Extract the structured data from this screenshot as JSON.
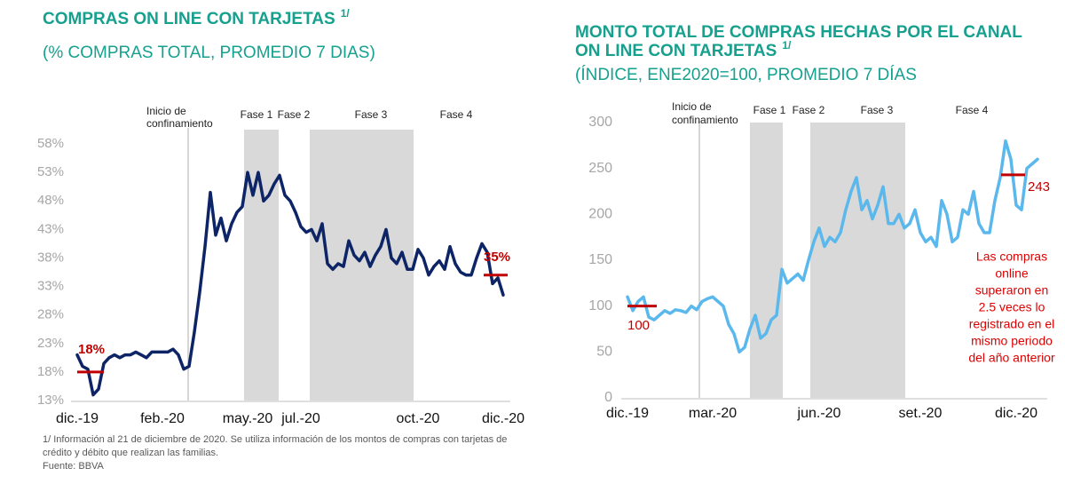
{
  "chart_data": [
    {
      "type": "line",
      "title": [
        "COMPRAS ON LINE CON TARJETAS"
      ],
      "title_note": "1/",
      "subtitle": "(% COMPRAS TOTAL, PROMEDIO 7 DIAS)",
      "confinement_label": [
        "Inicio de",
        "confinamiento"
      ],
      "phases": [
        "Fase 1",
        "Fase 2",
        "Fase 3",
        "Fase 4"
      ],
      "categories": [
        "dic.-19",
        null,
        null,
        null,
        null,
        null,
        null,
        null,
        null,
        null,
        null,
        null,
        null,
        null,
        null,
        null,
        "feb.-20",
        null,
        null,
        null,
        null,
        null,
        null,
        null,
        null,
        null,
        null,
        null,
        null,
        null,
        null,
        null,
        "may.-20",
        null,
        null,
        null,
        null,
        null,
        null,
        null,
        null,
        null,
        "jul.-20",
        null,
        null,
        null,
        null,
        null,
        null,
        null,
        null,
        null,
        null,
        null,
        null,
        null,
        null,
        null,
        null,
        null,
        null,
        null,
        null,
        null,
        "oct.-20",
        null,
        null,
        null,
        null,
        null,
        null,
        null,
        null,
        null,
        null,
        null,
        null,
        null,
        null,
        null,
        "dic.-20"
      ],
      "values": [
        21,
        19,
        18.5,
        14,
        15,
        19.5,
        20.5,
        21,
        20.5,
        21,
        21,
        21.5,
        21,
        20.5,
        21.5,
        21.5,
        21.5,
        21.5,
        22,
        21,
        18.5,
        19,
        25,
        32,
        40,
        49.5,
        42,
        45,
        41,
        44,
        46,
        47,
        53,
        49,
        53,
        48,
        49,
        51,
        52.5,
        49,
        48,
        46,
        43.5,
        42.5,
        43,
        41,
        44,
        37,
        36,
        37,
        36.5,
        41,
        38.5,
        37.5,
        39,
        36.5,
        38.5,
        40,
        43,
        38,
        37,
        39,
        36,
        36,
        39.5,
        38,
        35,
        36.5,
        37.5,
        36,
        40,
        37,
        35.5,
        35,
        35,
        38,
        40.5,
        39,
        33.5,
        34.5,
        31.5
      ],
      "color": "#0d2466",
      "ylim": [
        13,
        60.5
      ],
      "yticks": [
        {
          "value": 13,
          "label": "13%"
        },
        {
          "value": 18,
          "label": "18%"
        },
        {
          "value": 23,
          "label": "23%"
        },
        {
          "value": 28,
          "label": "28%"
        },
        {
          "value": 33,
          "label": "33%"
        },
        {
          "value": 38,
          "label": "38%"
        },
        {
          "value": 43,
          "label": "43%"
        },
        {
          "value": 48,
          "label": "48%"
        },
        {
          "value": 53,
          "label": "53%"
        },
        {
          "value": 58,
          "label": "58%"
        }
      ],
      "reference_lines": [
        {
          "value": 18,
          "label": "18%"
        },
        {
          "value": 35,
          "label": "35%"
        }
      ],
      "reference_color": "#c00000"
    },
    {
      "type": "line",
      "title": [
        "MONTO TOTAL DE COMPRAS HECHAS POR EL CANAL",
        "ON LINE CON TARJETAS"
      ],
      "title_note": "1/",
      "subtitle": "(ÍNDICE, ENE2020=100, PROMEDIO 7 DÍAS",
      "confinement_label": [
        "Inicio de",
        "confinamiento"
      ],
      "phases": [
        "Fase 1",
        "Fase 2",
        "Fase 3",
        "Fase 4"
      ],
      "categories": [
        "dic.-19",
        null,
        null,
        null,
        null,
        null,
        null,
        null,
        null,
        null,
        null,
        null,
        null,
        null,
        null,
        null,
        "mar.-20",
        null,
        null,
        null,
        null,
        null,
        null,
        null,
        null,
        null,
        null,
        null,
        null,
        null,
        null,
        null,
        null,
        null,
        null,
        null,
        "jun.-20",
        null,
        null,
        null,
        null,
        null,
        null,
        null,
        null,
        null,
        null,
        null,
        null,
        null,
        null,
        null,
        null,
        null,
        null,
        "set.-20",
        null,
        null,
        null,
        null,
        null,
        null,
        null,
        null,
        null,
        null,
        null,
        null,
        null,
        null,
        null,
        null,
        null,
        "dic.-20",
        null,
        null,
        null,
        null
      ],
      "values": [
        110,
        95,
        105,
        110,
        88,
        85,
        90,
        95,
        92,
        96,
        95,
        93,
        100,
        96,
        105,
        108,
        110,
        105,
        100,
        80,
        70,
        50,
        55,
        75,
        90,
        65,
        70,
        85,
        90,
        140,
        125,
        130,
        135,
        128,
        150,
        170,
        185,
        165,
        175,
        170,
        180,
        205,
        225,
        240,
        205,
        215,
        195,
        210,
        230,
        190,
        190,
        200,
        185,
        190,
        205,
        180,
        170,
        175,
        165,
        215,
        200,
        170,
        175,
        205,
        200,
        225,
        190,
        180,
        180,
        215,
        240,
        280,
        260,
        210,
        205,
        250,
        255,
        260
      ],
      "color": "#5bb8ec",
      "ylim": [
        0,
        300
      ],
      "yticks": [
        0,
        50,
        100,
        150,
        200,
        250,
        300
      ],
      "reference_lines": [
        {
          "value": 100
        },
        {
          "value": 243
        }
      ],
      "reference_color": "#c00000",
      "annotation": [
        "Las compras",
        "online",
        "superaron en",
        "2.5 veces lo",
        "registrado en el",
        "mismo periodo",
        "del año anterior"
      ]
    }
  ],
  "footnote": [
    "1/ Información al 21 de diciembre de 2020. Se utiliza información de los montos de compras con tarjetas de",
    "crédito y débito que realizan las familias."
  ],
  "source": "Fuente: BBVA"
}
